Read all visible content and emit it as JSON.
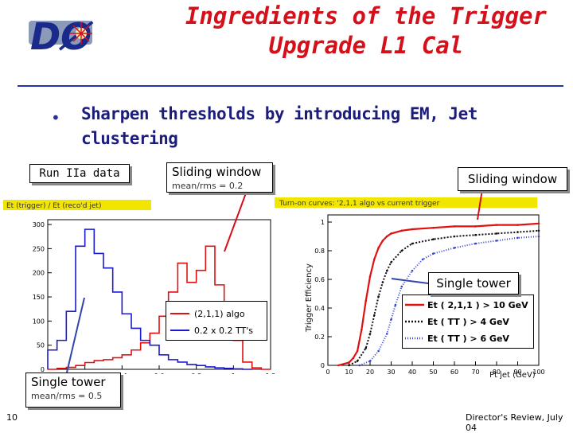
{
  "slide": {
    "title_line1": "Ingredients of the Trigger",
    "title_line2": "Upgrade L1 Cal",
    "logo_text": "DØ",
    "bullet": "Sharpen thresholds by introducing EM, Jet clustering",
    "page_number": "10",
    "footer": "Director's Review, July 04",
    "accent_color": "#d4101a",
    "rule_color": "#2233aa"
  },
  "callouts": {
    "run": "Run IIa data",
    "sliding1": "Sliding window",
    "sliding1_sub": "mean/rms = 0.2",
    "sliding2": "Sliding window",
    "single1": "Single tower",
    "single2": "Single tower",
    "single2_sub": "mean/rms = 0.5"
  },
  "chart_data": [
    {
      "type": "line",
      "title": "Et (trigger) / Et (reco'd jet)",
      "x_ticks": [
        "0",
        "0.2",
        "0.4",
        "0.6",
        "0.8",
        "1",
        "1.2"
      ],
      "y_ticks": [
        "0",
        "50",
        "100",
        "150",
        "200",
        "250",
        "300"
      ],
      "xlim": [
        0,
        1.2
      ],
      "ylim": [
        0,
        310
      ],
      "legend_position": "bottom-right",
      "series": [
        {
          "name": "(2,1,1) algo",
          "color": "#e01010",
          "x": [
            0,
            0.05,
            0.1,
            0.15,
            0.2,
            0.25,
            0.3,
            0.35,
            0.4,
            0.45,
            0.5,
            0.55,
            0.6,
            0.65,
            0.7,
            0.75,
            0.8,
            0.85,
            0.9,
            0.95,
            1.0,
            1.05,
            1.1,
            1.15
          ],
          "y": [
            0,
            2,
            4,
            8,
            14,
            18,
            20,
            24,
            30,
            40,
            55,
            75,
            110,
            160,
            220,
            180,
            205,
            255,
            175,
            110,
            60,
            15,
            3,
            0
          ]
        },
        {
          "name": "0.2 x 0.2 TT's",
          "color": "#1a1ad0",
          "x": [
            0,
            0.05,
            0.1,
            0.15,
            0.2,
            0.25,
            0.3,
            0.35,
            0.4,
            0.45,
            0.5,
            0.55,
            0.6,
            0.65,
            0.7,
            0.75,
            0.8,
            0.85,
            0.9,
            0.95,
            1.0,
            1.05
          ],
          "y": [
            40,
            60,
            120,
            255,
            290,
            240,
            210,
            160,
            115,
            85,
            60,
            50,
            30,
            20,
            15,
            10,
            8,
            5,
            3,
            2,
            1,
            0
          ]
        }
      ]
    },
    {
      "type": "scatter",
      "title": "Turn-on curves: '2,1,1 algo vs current trigger",
      "xlabel": "Pt jet (GeV)",
      "ylabel": "Trigger Efficiency",
      "x_ticks": [
        "0",
        "10",
        "20",
        "30",
        "40",
        "50",
        "60",
        "70",
        "80",
        "90",
        "100"
      ],
      "y_ticks": [
        "0",
        "0.2",
        "0.4",
        "0.6",
        "0.8",
        "1"
      ],
      "xlim": [
        0,
        100
      ],
      "ylim": [
        0,
        1.05
      ],
      "legend_position": "bottom-right",
      "series": [
        {
          "name": "Et ( 2,1,1 ) > 10 GeV",
          "color": "#e01010",
          "x": [
            5,
            10,
            12,
            14,
            16,
            18,
            20,
            22,
            24,
            26,
            28,
            30,
            35,
            40,
            50,
            60,
            70,
            80,
            90,
            100
          ],
          "y": [
            0,
            0.02,
            0.05,
            0.1,
            0.25,
            0.45,
            0.62,
            0.74,
            0.82,
            0.87,
            0.9,
            0.92,
            0.94,
            0.95,
            0.96,
            0.97,
            0.97,
            0.98,
            0.98,
            0.99
          ]
        },
        {
          "name": "Et ( TT ) > 4 GeV",
          "color": "#111111",
          "x": [
            10,
            14,
            18,
            20,
            22,
            24,
            26,
            28,
            30,
            35,
            40,
            50,
            60,
            70,
            80,
            90,
            100
          ],
          "y": [
            0,
            0.03,
            0.12,
            0.22,
            0.35,
            0.48,
            0.58,
            0.66,
            0.72,
            0.8,
            0.85,
            0.88,
            0.9,
            0.91,
            0.92,
            0.93,
            0.94
          ]
        },
        {
          "name": "Et ( TT ) > 6 GeV",
          "color": "#3344cc",
          "x": [
            15,
            20,
            24,
            28,
            30,
            32,
            35,
            40,
            45,
            50,
            60,
            70,
            80,
            90,
            100
          ],
          "y": [
            0,
            0.03,
            0.1,
            0.22,
            0.32,
            0.42,
            0.55,
            0.66,
            0.74,
            0.78,
            0.82,
            0.85,
            0.87,
            0.89,
            0.9
          ]
        }
      ]
    }
  ]
}
